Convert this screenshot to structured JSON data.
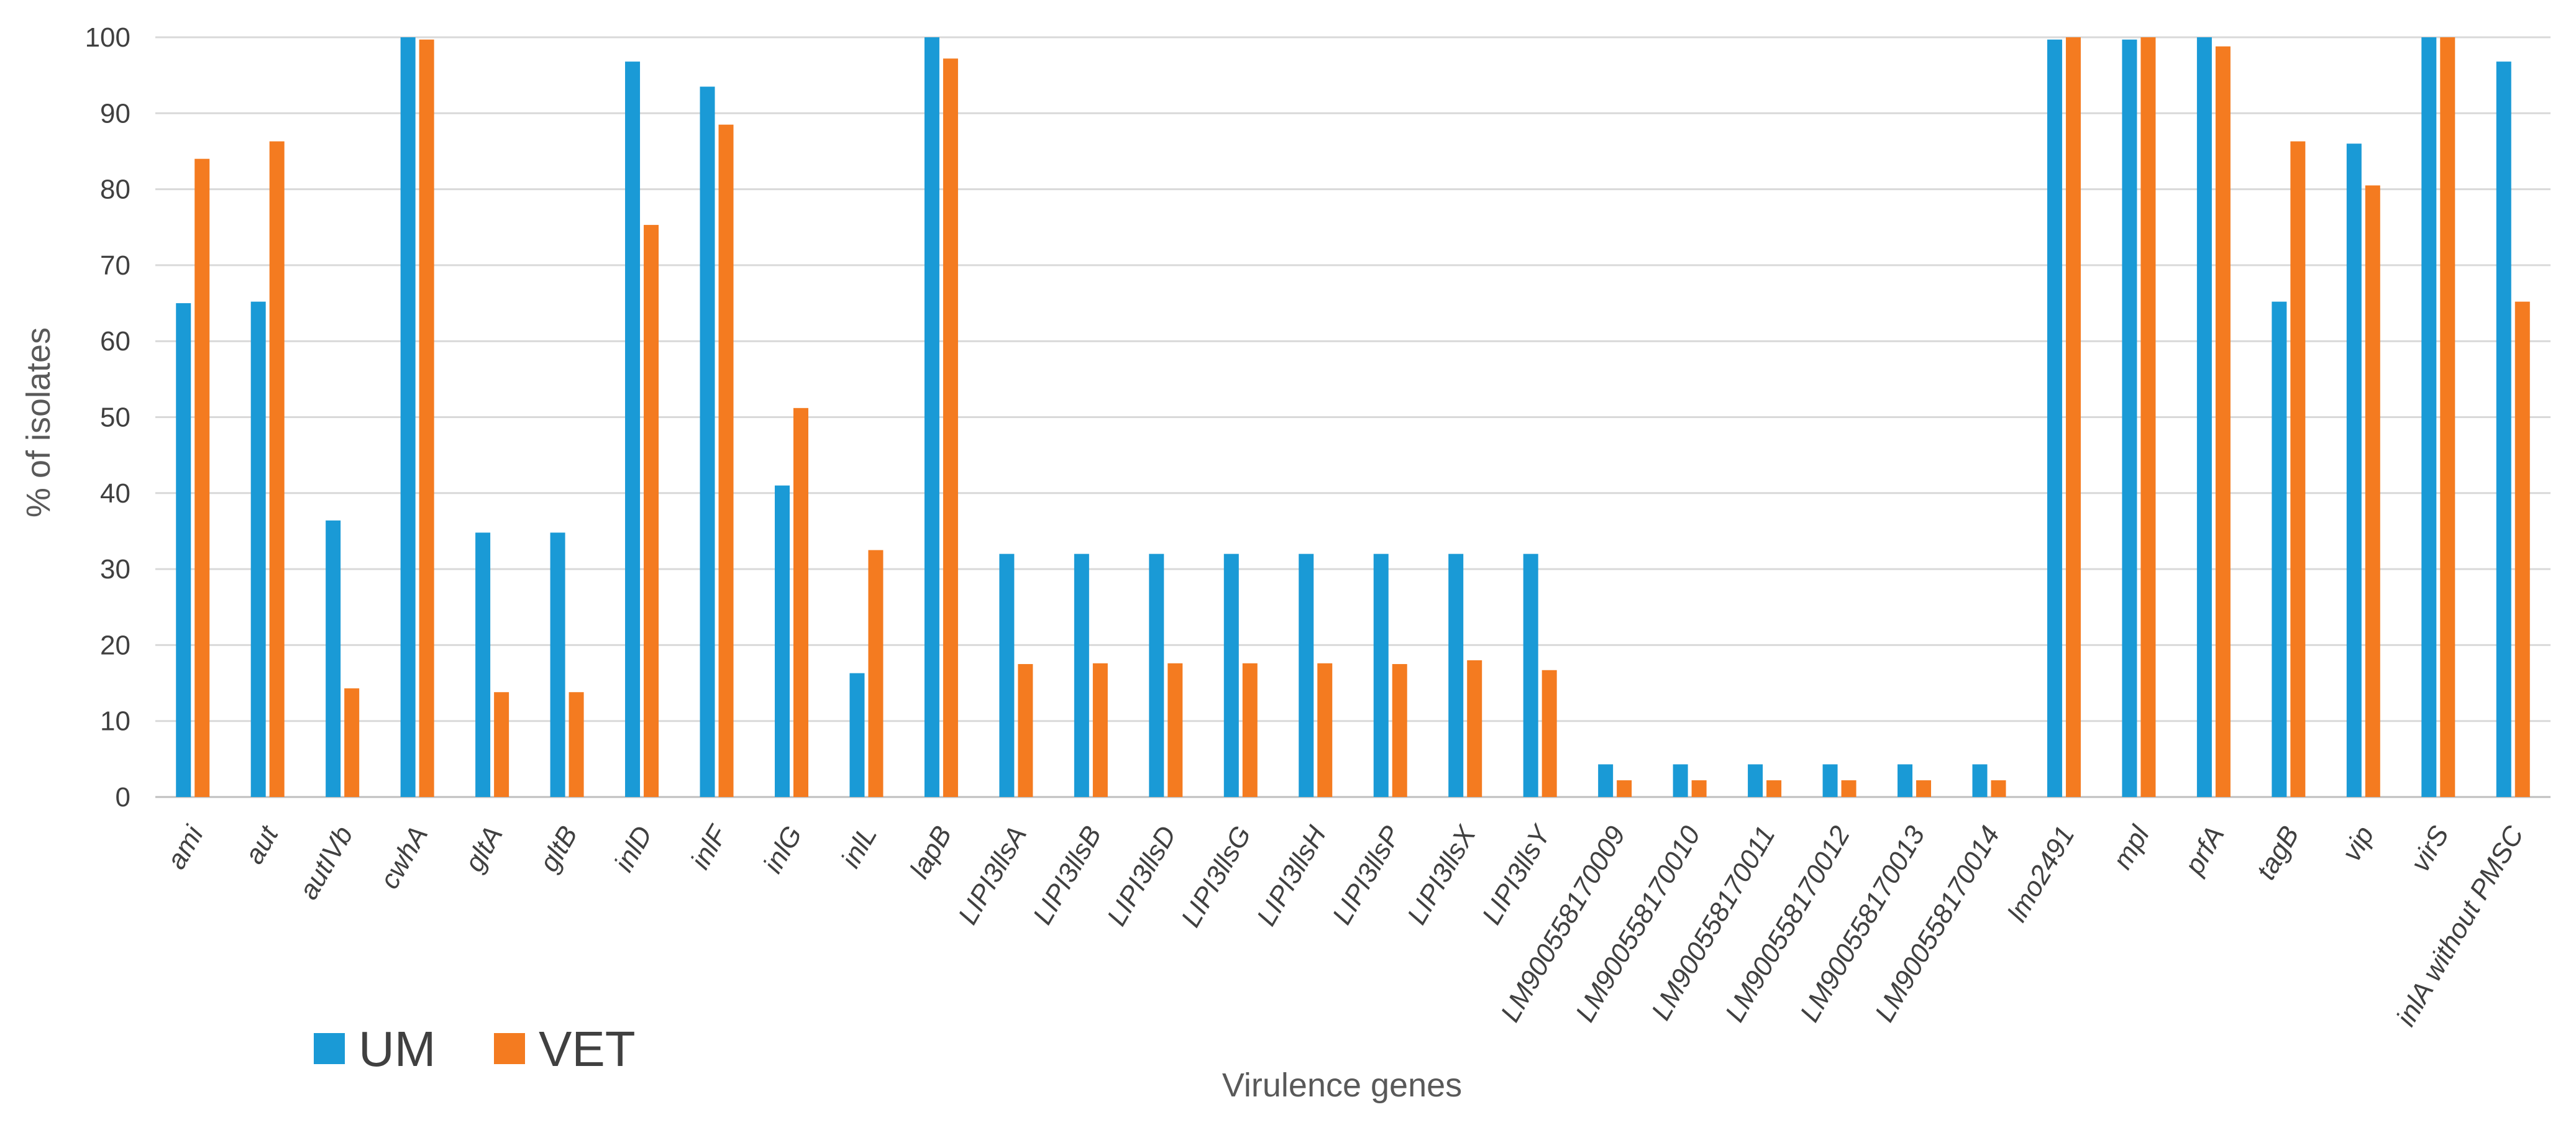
{
  "chart_data": {
    "type": "bar",
    "title": "",
    "xlabel": "Virulence genes",
    "ylabel": "% of isolates",
    "ylim": [
      0,
      100
    ],
    "yticks": [
      0,
      10,
      20,
      30,
      40,
      50,
      60,
      70,
      80,
      90,
      100
    ],
    "grid": true,
    "legend_position": "bottom-left",
    "categories": [
      "ami",
      "aut",
      "autIVb",
      "cwhA",
      "gltA",
      "gltB",
      "inlD",
      "inlF",
      "inlG",
      "inlL",
      "lapB",
      "LIPI3llsA",
      "LIPI3llsB",
      "LIPI3llsD",
      "LIPI3llsG",
      "LIPI3llsH",
      "LIPI3llsP",
      "LIPI3llsX",
      "LIPI3llsY",
      "LM900558170009",
      "LM900558170010",
      "LM900558170011",
      "LM900558170012",
      "LM900558170013",
      "LM900558170014",
      "lmo2491",
      "mpl",
      "prfA",
      "tagB",
      "vip",
      "virS",
      "inlA without PMSC"
    ],
    "series": [
      {
        "name": "UM",
        "color": "#1a9ad6",
        "values": [
          65,
          65.2,
          36.4,
          100,
          34.8,
          34.8,
          96.8,
          93.5,
          41,
          16.3,
          100,
          32,
          32,
          32,
          32,
          32,
          32,
          32,
          32,
          4.3,
          4.3,
          4.3,
          4.3,
          4.3,
          4.3,
          99.7,
          99.7,
          100,
          65.2,
          86,
          100,
          96.8
        ]
      },
      {
        "name": "VET",
        "color": "#f47b20",
        "values": [
          84,
          86.3,
          14.3,
          99.7,
          13.8,
          13.8,
          75.3,
          88.5,
          51.2,
          32.5,
          97.2,
          17.5,
          17.6,
          17.6,
          17.6,
          17.6,
          17.5,
          18,
          16.7,
          2.2,
          2.2,
          2.2,
          2.2,
          2.2,
          2.2,
          100,
          100,
          98.8,
          86.3,
          80.5,
          100,
          65.2
        ]
      }
    ]
  }
}
